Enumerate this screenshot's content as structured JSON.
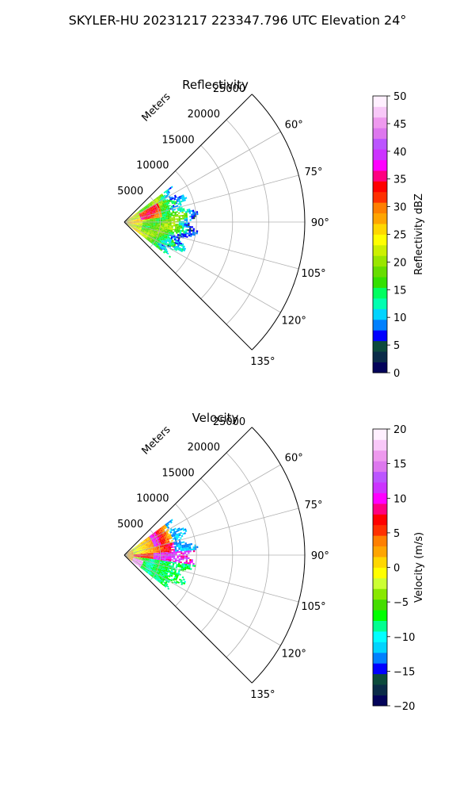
{
  "figure": {
    "title": "SKYLER-HU  20231217  223347.796 UTC Elevation 24°"
  },
  "chart_data": [
    {
      "type": "heatmap",
      "projection": "polar-sector",
      "title": "Reflectivity",
      "radial_label": "Meters",
      "radial_ticks": [
        "5000",
        "10000",
        "15000",
        "20000",
        "25000"
      ],
      "radial_tick_values": [
        5000,
        10000,
        15000,
        20000,
        25000
      ],
      "radial_max": 25000,
      "theta_ticks": [
        "60°",
        "75°",
        "90°",
        "105°",
        "120°",
        "135°"
      ],
      "theta_tick_values": [
        60,
        75,
        90,
        105,
        120,
        135
      ],
      "theta_range": [
        45,
        135
      ],
      "grid": true,
      "colorbar": {
        "label": "Reflectivity dBZ",
        "vmin": 0,
        "vmax": 50,
        "ticks": [
          "0",
          "5",
          "10",
          "15",
          "20",
          "25",
          "30",
          "35",
          "40",
          "45",
          "50"
        ],
        "tick_values": [
          0,
          5,
          10,
          15,
          20,
          25,
          30,
          35,
          40,
          45,
          50
        ],
        "colors": [
          "#03035a",
          "#0a2b48",
          "#0c4a3c",
          "#0000ff",
          "#0080ff",
          "#00d4ff",
          "#00ffb0",
          "#00ff60",
          "#33e000",
          "#66dd00",
          "#99e600",
          "#ccf000",
          "#ffff00",
          "#ffd700",
          "#ffa500",
          "#ff7f00",
          "#ff3000",
          "#ff0000",
          "#ff0080",
          "#ff00ff",
          "#cc33ff",
          "#bb55ff",
          "#dd77ee",
          "#ee99ee",
          "#f8c8f8",
          "#fff0ff"
        ]
      }
    },
    {
      "type": "heatmap",
      "projection": "polar-sector",
      "title": "Velocity",
      "radial_label": "Meters",
      "radial_ticks": [
        "5000",
        "10000",
        "15000",
        "20000",
        "25000"
      ],
      "radial_tick_values": [
        5000,
        10000,
        15000,
        20000,
        25000
      ],
      "radial_max": 25000,
      "theta_ticks": [
        "60°",
        "75°",
        "90°",
        "105°",
        "120°",
        "135°"
      ],
      "theta_tick_values": [
        60,
        75,
        90,
        105,
        120,
        135
      ],
      "theta_range": [
        45,
        135
      ],
      "grid": true,
      "colorbar": {
        "label": "Velocity (m/s)",
        "vmin": -20,
        "vmax": 20,
        "ticks": [
          "−20",
          "−15",
          "−10",
          "−5",
          "0",
          "5",
          "10",
          "15",
          "20"
        ],
        "tick_values": [
          -20,
          -15,
          -10,
          -5,
          0,
          5,
          10,
          15,
          20
        ],
        "colors": [
          "#03035a",
          "#0a2b48",
          "#0c4a3c",
          "#0000ff",
          "#0080ff",
          "#00d4ff",
          "#00ffff",
          "#00ff90",
          "#00ff00",
          "#44dd00",
          "#88e800",
          "#ccff33",
          "#ffff00",
          "#ffd700",
          "#ffa500",
          "#ff7f00",
          "#ff3000",
          "#ff0000",
          "#ff0080",
          "#ff00ff",
          "#cc33ff",
          "#bb55ff",
          "#dd77ee",
          "#ee99ee",
          "#f8c8f8",
          "#fff0ff"
        ]
      }
    }
  ]
}
